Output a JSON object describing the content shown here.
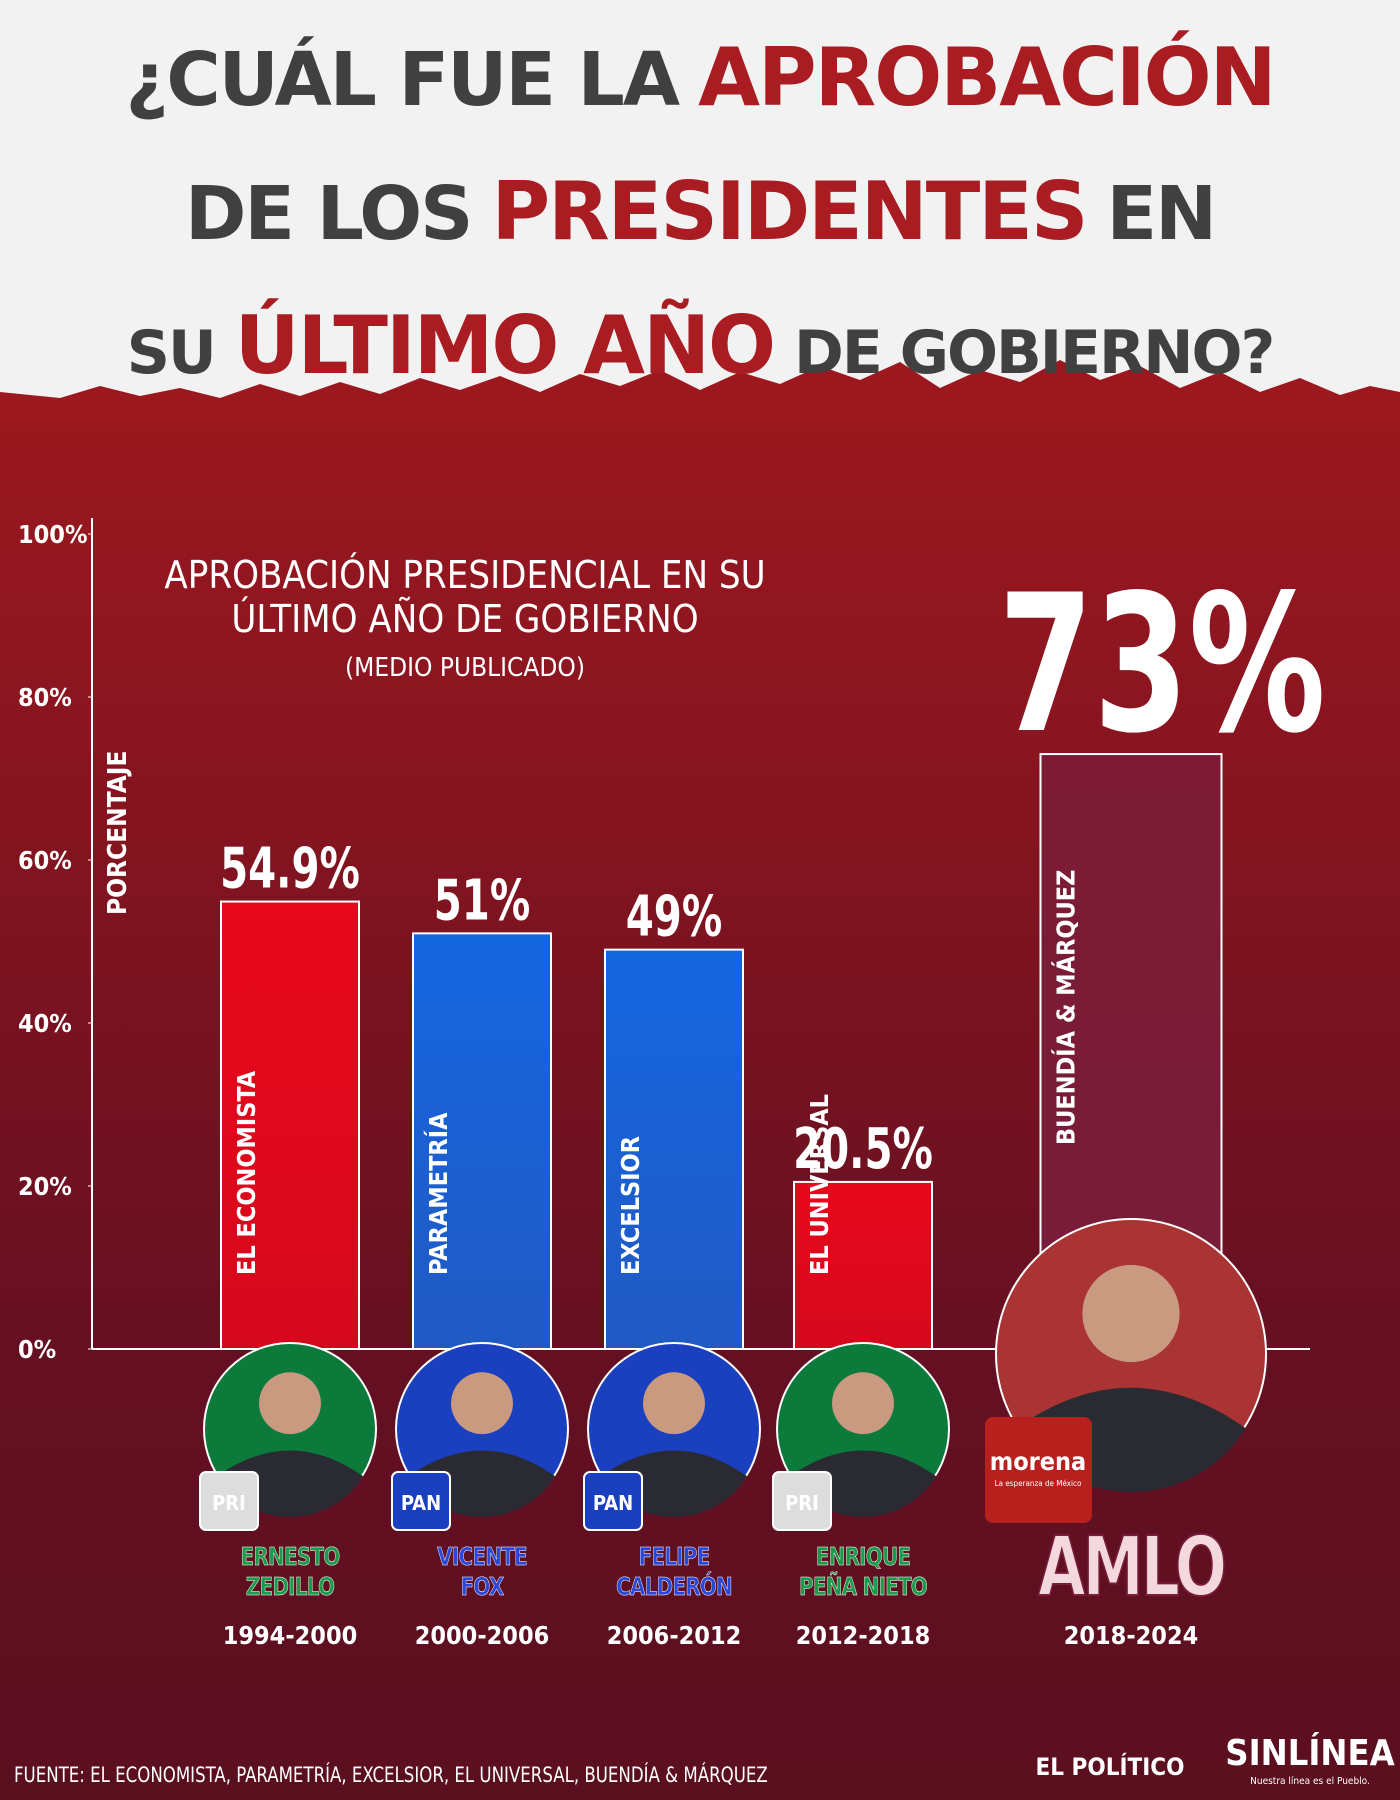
{
  "title": [
    [
      {
        "text": "¿CUÁL FUE LA",
        "highlight": false
      },
      {
        "text": "APROBACIÓN",
        "highlight": true
      }
    ],
    [
      {
        "text": "DE LOS",
        "highlight": false
      },
      {
        "text": "PRESIDENTES",
        "highlight": true
      },
      {
        "text": "EN",
        "highlight": false
      }
    ],
    [
      {
        "text": "SU",
        "highlight": false
      },
      {
        "text": "ÚLTIMO AÑO",
        "highlight": true
      },
      {
        "text": "DE GOBIERNO?",
        "highlight": false
      }
    ]
  ],
  "chart_data": {
    "type": "bar",
    "title": [
      "APROBACIÓN PRESIDENCIAL EN SU",
      "ÚLTIMO AÑO DE GOBIERNO"
    ],
    "subtitle": "(MEDIO PUBLICADO)",
    "y_label": "PORCENTAJE",
    "categories": [
      "ERNESTO ZEDILLO",
      "VICENTE FOX",
      "FELIPE CALDERÓN",
      "ENRIQUE PEÑA NIETO",
      "AMLO"
    ],
    "periods": [
      "1994-2000",
      "2000-2006",
      "2006-2012",
      "2012-2018",
      "2018-2024"
    ],
    "sources": [
      "EL ECONOMISTA",
      "PARAMETRÍA",
      "EXCELSIOR",
      "EL UNIVERSAL",
      "BUENDÍA & MÁRQUEZ"
    ],
    "parties": [
      "PRI",
      "PAN",
      "PAN",
      "PRI",
      "morena"
    ],
    "party_motto": "La esperanza de México",
    "values": [
      54.9,
      51,
      49,
      20.5,
      73
    ],
    "value_labels": [
      "54.9%",
      "51%",
      "49%",
      "20.5%",
      "73%"
    ],
    "colors": [
      "#e8071c",
      "#1466e0",
      "#1466e0",
      "#e8071c",
      "#7a1d3a"
    ],
    "ylim": [
      0,
      100
    ],
    "yticks": [
      {
        "value": 0,
        "label": "0%"
      },
      {
        "value": 20,
        "label": "20%"
      },
      {
        "value": 40,
        "label": "40%"
      },
      {
        "value": 60,
        "label": "60%"
      },
      {
        "value": 80,
        "label": "80%"
      },
      {
        "value": 100,
        "label": "100%"
      }
    ]
  },
  "footer": {
    "source": "FUENTE: EL ECONOMISTA, PARAMETRÍA, EXCELSIOR, EL UNIVERSAL, BUENDÍA & MÁRQUEZ",
    "logo1": "EL POLÍTICO",
    "logo2": "SINLÍNEA",
    "logo2_tagline": "Nuestra línea es el Pueblo."
  }
}
